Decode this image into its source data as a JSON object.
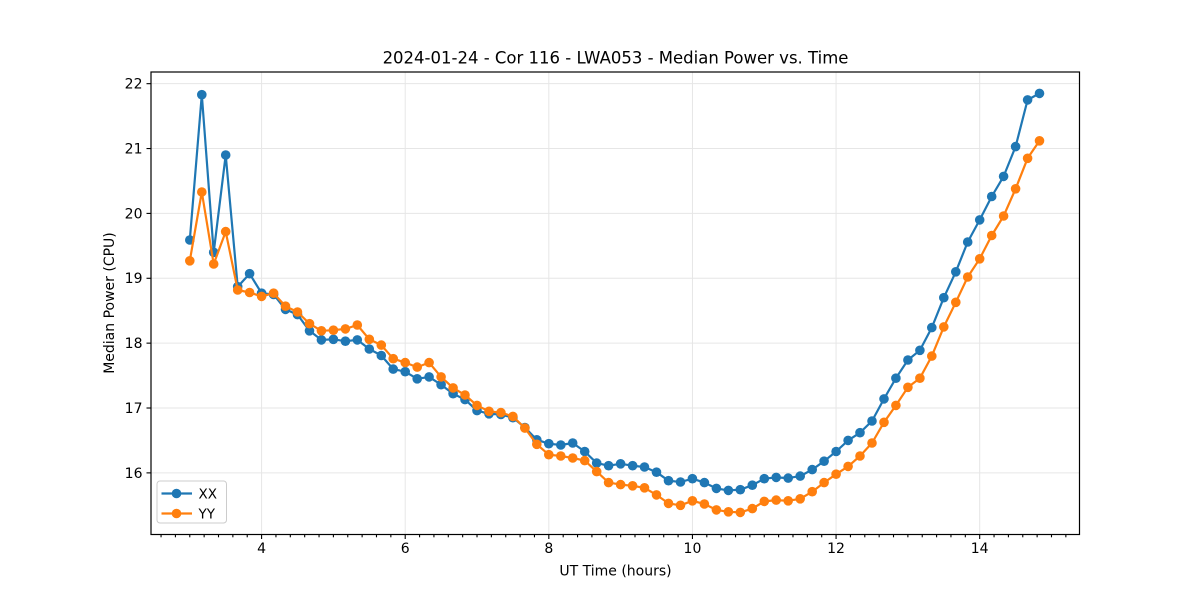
{
  "figure": {
    "background": "#ffffff"
  },
  "chart_data": {
    "type": "line",
    "title": "2024-01-24 - Cor 116 - LWA053 - Median Power vs. Time",
    "xlabel": "UT Time (hours)",
    "ylabel": "Median Power (CPU)",
    "xlim": [
      2.46,
      15.39
    ],
    "ylim": [
      15.05,
      22.18
    ],
    "xticks": [
      4,
      6,
      8,
      10,
      12,
      14
    ],
    "x_minor_interval": 0.2,
    "yticks": [
      16,
      17,
      18,
      19,
      20,
      21,
      22
    ],
    "grid": true,
    "grid_color": "#e6e6e6",
    "axis_color": "#000000",
    "marker": "circle",
    "legend_position": "lower-left",
    "legend_border_color": "#cccccc",
    "x": [
      3.0,
      3.167,
      3.333,
      3.5,
      3.667,
      3.833,
      4.0,
      4.167,
      4.333,
      4.5,
      4.667,
      4.833,
      5.0,
      5.167,
      5.333,
      5.5,
      5.667,
      5.833,
      6.0,
      6.167,
      6.333,
      6.5,
      6.667,
      6.833,
      7.0,
      7.167,
      7.333,
      7.5,
      7.667,
      7.833,
      8.0,
      8.167,
      8.333,
      8.5,
      8.667,
      8.833,
      9.0,
      9.167,
      9.333,
      9.5,
      9.667,
      9.833,
      10.0,
      10.167,
      10.333,
      10.5,
      10.667,
      10.833,
      11.0,
      11.167,
      11.333,
      11.5,
      11.667,
      11.833,
      12.0,
      12.167,
      12.333,
      12.5,
      12.667,
      12.833,
      13.0,
      13.167,
      13.333,
      13.5,
      13.667,
      13.833,
      14.0,
      14.167,
      14.333,
      14.5,
      14.667,
      14.833
    ],
    "series": [
      {
        "name": "XX",
        "color": "#1f77b4",
        "values": [
          19.59,
          21.83,
          19.4,
          20.9,
          18.87,
          19.07,
          18.77,
          18.75,
          18.52,
          18.44,
          18.19,
          18.05,
          18.06,
          18.03,
          18.05,
          17.91,
          17.81,
          17.6,
          17.56,
          17.45,
          17.48,
          17.36,
          17.22,
          17.13,
          16.96,
          16.91,
          16.9,
          16.85,
          16.7,
          16.51,
          16.45,
          16.43,
          16.46,
          16.33,
          16.15,
          16.11,
          16.14,
          16.11,
          16.09,
          16.01,
          15.88,
          15.86,
          15.91,
          15.85,
          15.76,
          15.73,
          15.74,
          15.81,
          15.91,
          15.93,
          15.92,
          15.95,
          16.05,
          16.18,
          16.33,
          16.5,
          16.62,
          16.8,
          17.14,
          17.46,
          17.74,
          17.89,
          18.24,
          18.7,
          19.1,
          19.56,
          19.9,
          20.26,
          20.57,
          21.03,
          21.75,
          21.85
        ]
      },
      {
        "name": "YY",
        "color": "#ff7f0e",
        "values": [
          19.27,
          20.33,
          19.22,
          19.72,
          18.82,
          18.78,
          18.72,
          18.77,
          18.57,
          18.48,
          18.3,
          18.19,
          18.2,
          18.22,
          18.28,
          18.06,
          17.97,
          17.76,
          17.7,
          17.63,
          17.7,
          17.48,
          17.31,
          17.2,
          17.04,
          16.95,
          16.93,
          16.87,
          16.69,
          16.44,
          16.28,
          16.26,
          16.23,
          16.19,
          16.02,
          15.85,
          15.82,
          15.8,
          15.77,
          15.66,
          15.53,
          15.5,
          15.57,
          15.52,
          15.43,
          15.4,
          15.39,
          15.45,
          15.56,
          15.58,
          15.57,
          15.6,
          15.71,
          15.85,
          15.98,
          16.1,
          16.26,
          16.46,
          16.78,
          17.04,
          17.32,
          17.46,
          17.8,
          18.25,
          18.63,
          19.02,
          19.3,
          19.66,
          19.96,
          20.38,
          20.85,
          21.12
        ]
      }
    ]
  }
}
